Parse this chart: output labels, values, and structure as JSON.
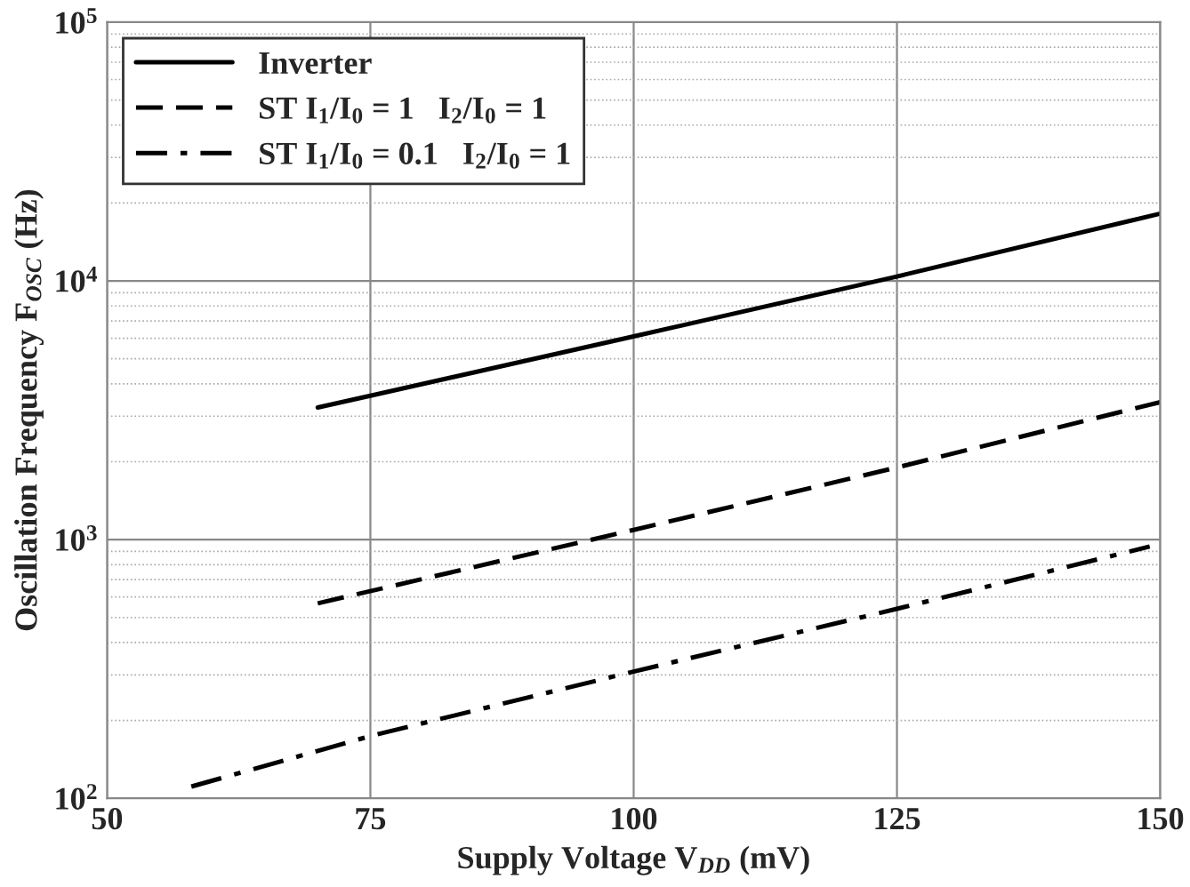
{
  "chart_data": {
    "type": "line",
    "xlabel": "Supply Voltage V$_{DD}$ (mV)",
    "ylabel": "Oscillation Frequency F$_{OSC}$ (Hz)",
    "log": "y",
    "grid": true,
    "legend": "top left",
    "xlim": [
      50,
      150
    ],
    "xticks": [
      50,
      75,
      100,
      125,
      150
    ],
    "ylim": [
      100,
      100000
    ],
    "yticks": [
      {
        "value": 100,
        "label": "10$^{2}$"
      },
      {
        "value": 1000,
        "label": "10$^{3}$"
      },
      {
        "value": 10000,
        "label": "10$^{4}$"
      },
      {
        "value": 100000,
        "label": "10$^{5}$"
      }
    ],
    "series": [
      {
        "name": "Inverter",
        "color": "#000000",
        "line_style": "solid",
        "x": [
          70,
          75,
          100,
          125,
          150
        ],
        "values": [
          3240,
          3600,
          6100,
          10400,
          18200
        ]
      },
      {
        "name": "ST I$_{1}$/I$_{0}$ = 1   I$_{2}$/I$_{0}$ = 1",
        "color": "#000000",
        "line_style": "dashed",
        "x": [
          70,
          100,
          125,
          150
        ],
        "values": [
          567,
          1090,
          1900,
          3400
        ]
      },
      {
        "name": "ST I$_{1}$/I$_{0}$ = 0.1   I$_{2}$/I$_{0}$ = 1",
        "color": "#000000",
        "line_style": "dashdot",
        "x": [
          58,
          75,
          100,
          125,
          149
        ],
        "values": [
          111,
          174,
          309,
          540,
          940
        ]
      }
    ]
  }
}
